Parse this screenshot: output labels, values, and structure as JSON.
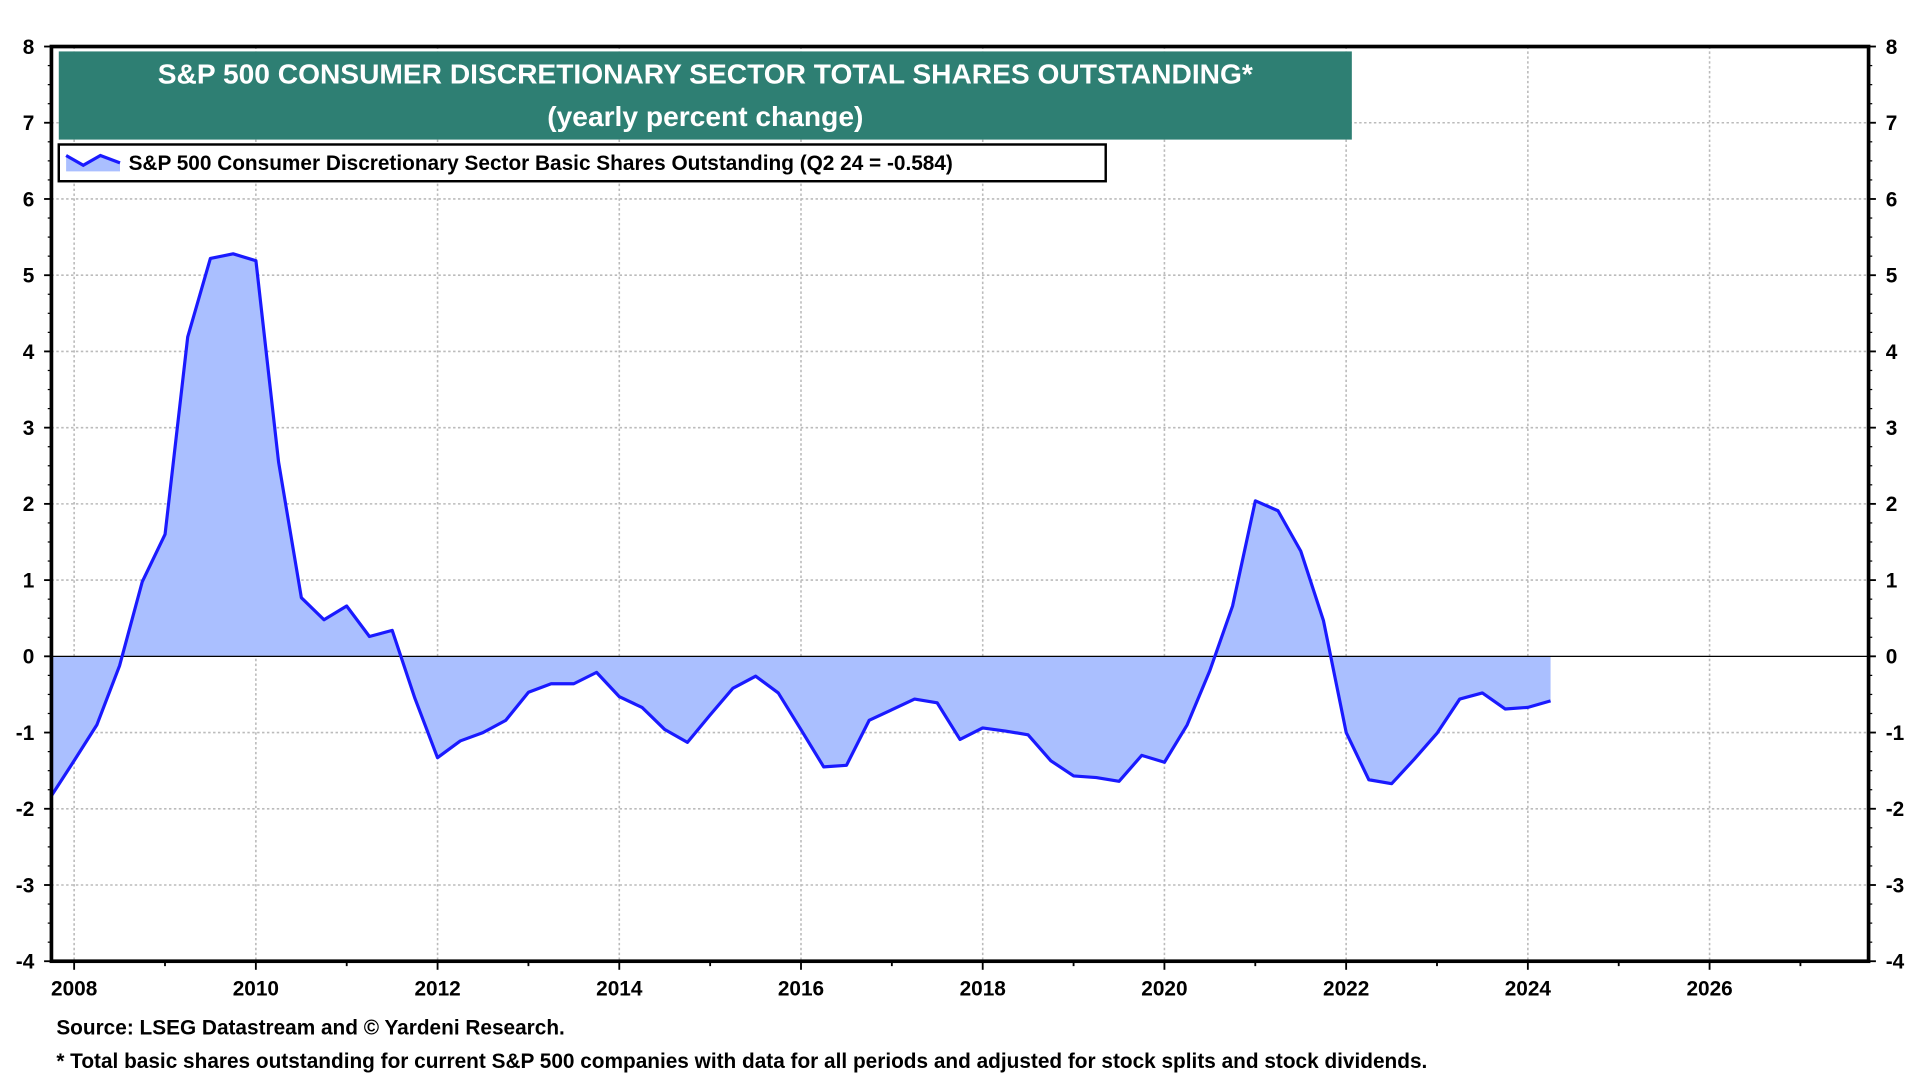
{
  "chart_data": {
    "type": "area",
    "title": "S&P 500 CONSUMER DISCRETIONARY SECTOR TOTAL SHARES OUTSTANDING*",
    "subtitle": "(yearly percent change)",
    "legend": {
      "label": "S&P 500 Consumer Discretionary Sector Basic Shares Outstanding (Q2 24 = -0.584)",
      "placement": "top-left"
    },
    "xlabel": "",
    "ylabel": "",
    "xlim": [
      "2007Q4",
      "2027Q4"
    ],
    "ylim": [
      -4,
      8
    ],
    "x_ticks": [
      "2008",
      "2010",
      "2012",
      "2014",
      "2016",
      "2018",
      "2020",
      "2022",
      "2024",
      "2026"
    ],
    "y_ticks": [
      -4,
      -3,
      -2,
      -1,
      0,
      1,
      2,
      3,
      4,
      5,
      6,
      7,
      8
    ],
    "grid": true,
    "colors": {
      "line": "#1a1aff",
      "fill": "#aabfff",
      "title_bg": "#2e7f73",
      "title_text": "#ffffff"
    },
    "series": [
      {
        "x": [
          "2007Q4",
          "2008Q1",
          "2008Q2",
          "2008Q3",
          "2008Q4",
          "2009Q1",
          "2009Q2",
          "2009Q3",
          "2009Q4",
          "2010Q1",
          "2010Q2",
          "2010Q3",
          "2010Q4",
          "2011Q1",
          "2011Q2",
          "2011Q3",
          "2011Q4",
          "2012Q1",
          "2012Q2",
          "2012Q3",
          "2012Q4",
          "2013Q1",
          "2013Q2",
          "2013Q3",
          "2013Q4",
          "2014Q1",
          "2014Q2",
          "2014Q3",
          "2014Q4",
          "2015Q1",
          "2015Q2",
          "2015Q3",
          "2015Q4",
          "2016Q1",
          "2016Q2",
          "2016Q3",
          "2016Q4",
          "2017Q1",
          "2017Q2",
          "2017Q3",
          "2017Q4",
          "2018Q1",
          "2018Q2",
          "2018Q3",
          "2018Q4",
          "2019Q1",
          "2019Q2",
          "2019Q3",
          "2019Q4",
          "2020Q1",
          "2020Q2",
          "2020Q3",
          "2020Q4",
          "2021Q1",
          "2021Q2",
          "2021Q3",
          "2021Q4",
          "2022Q1",
          "2022Q2",
          "2022Q3",
          "2022Q4",
          "2023Q1",
          "2023Q2",
          "2023Q3",
          "2023Q4",
          "2024Q1",
          "2024Q2"
        ],
        "values": [
          -1.83,
          -1.37,
          -0.9,
          -0.12,
          0.98,
          1.6,
          4.19,
          5.22,
          5.28,
          5.19,
          2.55,
          0.77,
          0.48,
          0.66,
          0.26,
          0.34,
          -0.55,
          -1.33,
          -1.11,
          -1.0,
          -0.84,
          -0.47,
          -0.36,
          -0.36,
          -0.21,
          -0.53,
          -0.67,
          -0.96,
          -1.13,
          -0.77,
          -0.42,
          -0.26,
          -0.48,
          -0.96,
          -1.45,
          -1.43,
          -0.84,
          -0.7,
          -0.56,
          -0.61,
          -1.09,
          -0.94,
          -0.98,
          -1.03,
          -1.37,
          -1.57,
          -1.59,
          -1.64,
          -1.3,
          -1.39,
          -0.9,
          -0.19,
          0.66,
          2.04,
          1.91,
          1.38,
          0.47,
          -1.0,
          -1.62,
          -1.67,
          -1.35,
          -1.01,
          -0.56,
          -0.48,
          -0.69,
          -0.67,
          -0.584
        ]
      }
    ]
  },
  "footer": {
    "source": "Source: LSEG Datastream and © Yardeni Research.",
    "note": "* Total basic shares outstanding for current S&P 500 companies with data for all periods and adjusted for stock splits and stock dividends."
  }
}
